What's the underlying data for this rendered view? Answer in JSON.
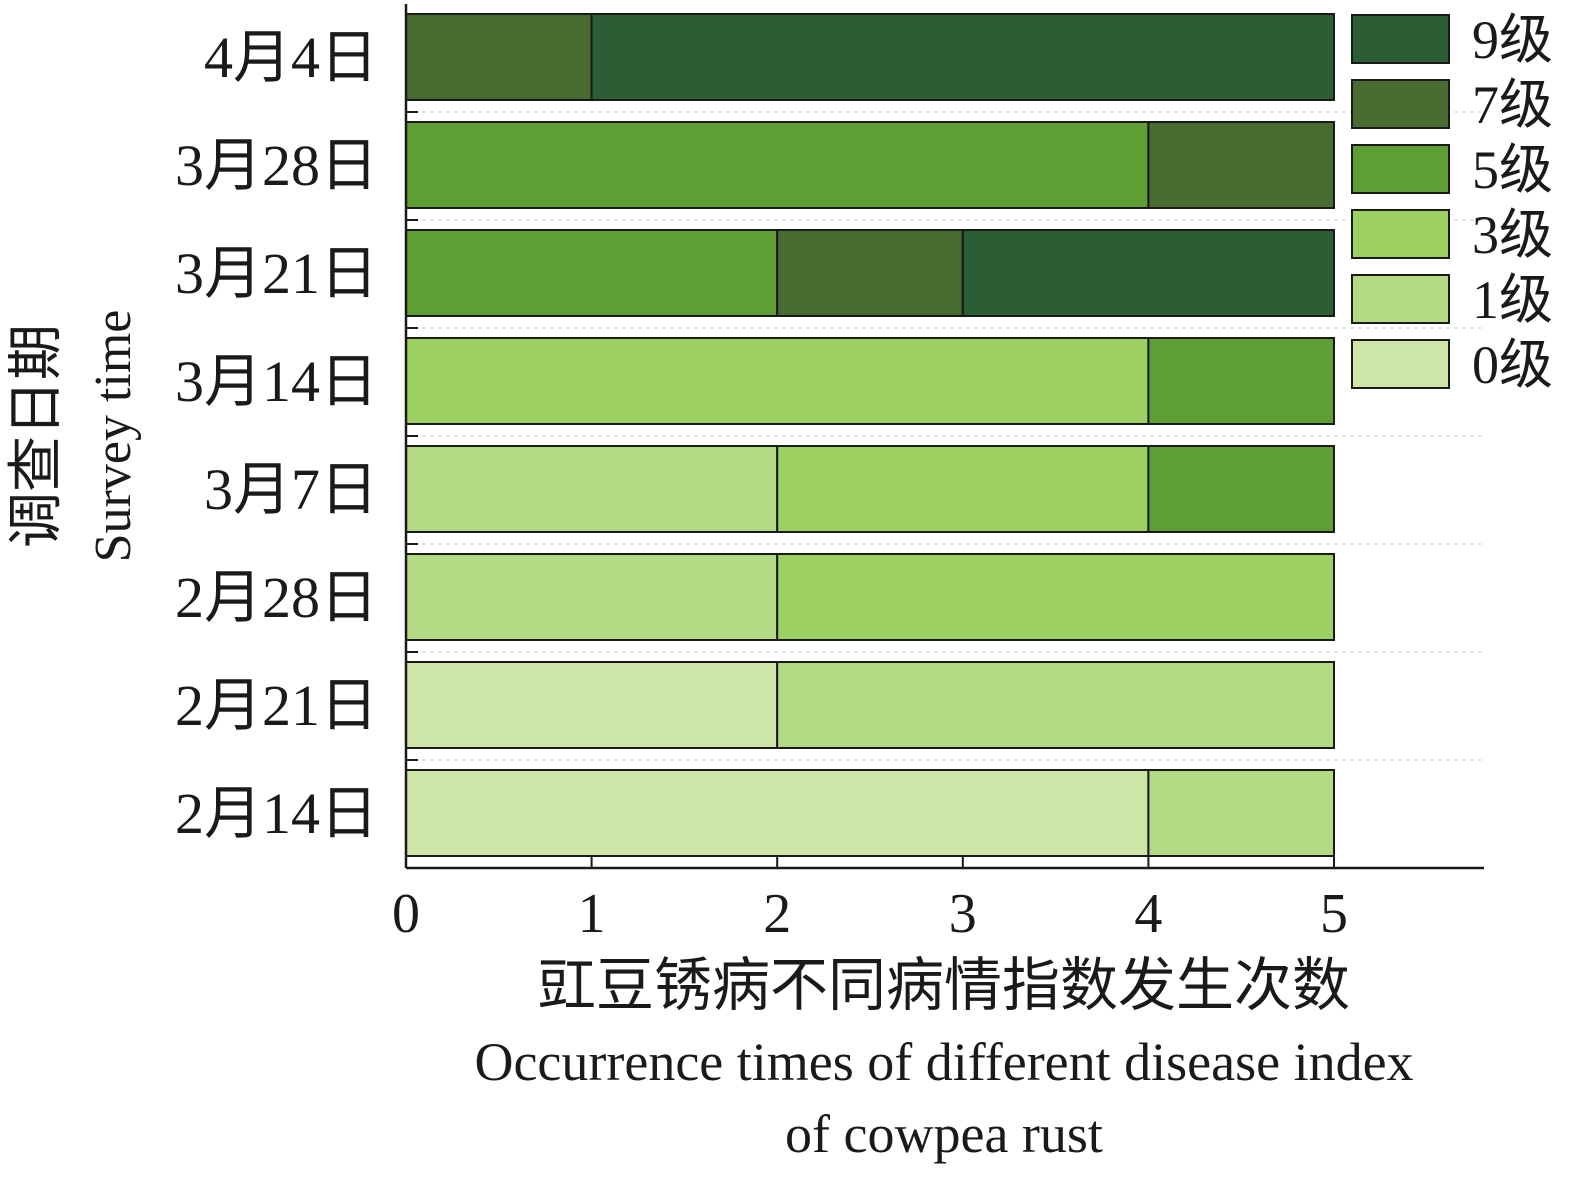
{
  "chart_data": {
    "type": "bar",
    "orientation": "horizontal",
    "stacked": true,
    "categories": [
      "4月4日",
      "3月28日",
      "3月21日",
      "3月14日",
      "3月7日",
      "2月28日",
      "2月21日",
      "2月14日"
    ],
    "series": [
      {
        "name": "0级",
        "color": "#cde6a8",
        "values": [
          0,
          0,
          0,
          0,
          0,
          0,
          2,
          4
        ]
      },
      {
        "name": "1级",
        "color": "#b3d985",
        "values": [
          0,
          0,
          0,
          0,
          2,
          2,
          3,
          1
        ]
      },
      {
        "name": "3级",
        "color": "#9dd063",
        "values": [
          0,
          0,
          0,
          4,
          2,
          3,
          0,
          0
        ]
      },
      {
        "name": "5级",
        "color": "#5f9e35",
        "values": [
          0,
          4,
          2,
          1,
          1,
          0,
          0,
          0
        ]
      },
      {
        "name": "7级",
        "color": "#486b32",
        "values": [
          1,
          1,
          1,
          0,
          0,
          0,
          0,
          0
        ]
      },
      {
        "name": "9级",
        "color": "#2b5e34",
        "values": [
          4,
          0,
          2,
          0,
          0,
          0,
          0,
          0
        ]
      }
    ],
    "legend_order": [
      "9级",
      "7级",
      "5级",
      "3级",
      "1级",
      "0级"
    ],
    "legend_position": "top-right",
    "xlim": [
      0,
      5.8
    ],
    "xticks": [
      "0",
      "1",
      "2",
      "3",
      "4",
      "5"
    ],
    "xlabel_cn": "豇豆锈病不同病情指数发生次数",
    "xlabel_en_line1": "Occurrence times of different disease index",
    "xlabel_en_line2": "of cowpea rust",
    "ylabel_cn": "调查日期",
    "ylabel_en": "Survey time",
    "grid": "dashed horizontal"
  }
}
